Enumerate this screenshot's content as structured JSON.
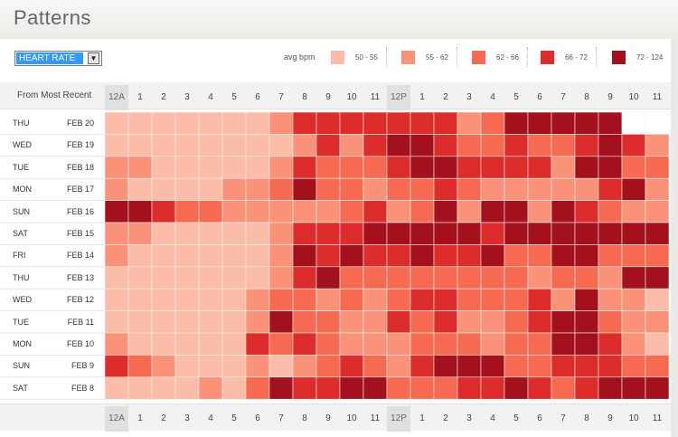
{
  "page": {
    "title": "Patterns"
  },
  "controls": {
    "metric_select": {
      "value": "HEART RATE"
    }
  },
  "legend": {
    "title": "avg bpm",
    "items": [
      {
        "label": "50 - 55",
        "color": "#fbbca8"
      },
      {
        "label": "55 - 62",
        "color": "#fa9279"
      },
      {
        "label": "62 - 66",
        "color": "#f66a52"
      },
      {
        "label": "66 - 72",
        "color": "#dd2c2c"
      },
      {
        "label": "72 - 124",
        "color": "#a3111c"
      }
    ]
  },
  "table": {
    "header_label": "From Most Recent"
  },
  "chart_data": {
    "type": "heatmap",
    "title": "Patterns",
    "metric": "HEART RATE",
    "value_unit": "avg bpm",
    "bins": [
      "50 - 55",
      "55 - 62",
      "62 - 66",
      "66 - 72",
      "72 - 124"
    ],
    "value_encoding": "bin index 0-4 (0 = 50-55 … 4 = 72-124); null = no data",
    "x_labels": [
      "12A",
      "1",
      "2",
      "3",
      "4",
      "5",
      "6",
      "7",
      "8",
      "9",
      "10",
      "11",
      "12P",
      "1",
      "2",
      "3",
      "4",
      "5",
      "6",
      "7",
      "8",
      "9",
      "10",
      "11"
    ],
    "rows": [
      {
        "day": "THU",
        "date": "FEB 20",
        "values": [
          0,
          0,
          0,
          0,
          0,
          0,
          0,
          1,
          3,
          3,
          3,
          3,
          3,
          3,
          3,
          1,
          2,
          4,
          4,
          4,
          4,
          4,
          null,
          null
        ]
      },
      {
        "day": "WED",
        "date": "FEB 19",
        "values": [
          0,
          0,
          0,
          0,
          0,
          0,
          0,
          0,
          1,
          3,
          1,
          3,
          4,
          4,
          3,
          2,
          2,
          3,
          2,
          2,
          3,
          4,
          3,
          1
        ]
      },
      {
        "day": "TUE",
        "date": "FEB 18",
        "values": [
          1,
          1,
          0,
          0,
          0,
          0,
          0,
          1,
          3,
          2,
          2,
          2,
          3,
          4,
          4,
          3,
          3,
          3,
          3,
          1,
          4,
          4,
          2,
          2
        ]
      },
      {
        "day": "MON",
        "date": "FEB 17",
        "values": [
          1,
          0,
          0,
          0,
          0,
          1,
          1,
          2,
          4,
          2,
          2,
          1,
          2,
          2,
          3,
          2,
          1,
          1,
          1,
          1,
          1,
          3,
          4,
          1
        ]
      },
      {
        "day": "SUN",
        "date": "FEB 16",
        "values": [
          4,
          4,
          3,
          2,
          2,
          1,
          1,
          1,
          1,
          1,
          2,
          3,
          1,
          2,
          4,
          1,
          4,
          4,
          1,
          4,
          3,
          2,
          1,
          1
        ]
      },
      {
        "day": "SAT",
        "date": "FEB 15",
        "values": [
          1,
          1,
          0,
          0,
          0,
          0,
          0,
          1,
          3,
          3,
          3,
          4,
          4,
          4,
          4,
          4,
          3,
          4,
          4,
          4,
          4,
          4,
          4,
          4
        ]
      },
      {
        "day": "FRI",
        "date": "FEB 14",
        "values": [
          1,
          0,
          0,
          0,
          0,
          0,
          0,
          1,
          4,
          3,
          4,
          3,
          3,
          4,
          3,
          3,
          4,
          2,
          2,
          4,
          4,
          2,
          2,
          2
        ]
      },
      {
        "day": "THU",
        "date": "FEB 13",
        "values": [
          0,
          0,
          0,
          0,
          0,
          0,
          0,
          1,
          3,
          4,
          2,
          2,
          2,
          2,
          2,
          2,
          2,
          2,
          1,
          2,
          2,
          1,
          4,
          4
        ]
      },
      {
        "day": "WED",
        "date": "FEB 12",
        "values": [
          0,
          0,
          0,
          0,
          0,
          0,
          1,
          2,
          2,
          1,
          2,
          1,
          2,
          3,
          3,
          2,
          2,
          2,
          3,
          1,
          4,
          1,
          1,
          0
        ]
      },
      {
        "day": "TUE",
        "date": "FEB 11",
        "values": [
          0,
          0,
          0,
          0,
          0,
          0,
          1,
          4,
          2,
          2,
          1,
          1,
          3,
          2,
          3,
          1,
          1,
          2,
          3,
          4,
          4,
          2,
          1,
          1
        ]
      },
      {
        "day": "MON",
        "date": "FEB 10",
        "values": [
          1,
          0,
          0,
          0,
          0,
          0,
          3,
          2,
          3,
          2,
          1,
          1,
          1,
          2,
          2,
          2,
          1,
          2,
          2,
          4,
          4,
          3,
          1,
          0
        ]
      },
      {
        "day": "SUN",
        "date": "FEB 9",
        "values": [
          3,
          2,
          1,
          0,
          0,
          0,
          1,
          0,
          1,
          2,
          3,
          2,
          1,
          3,
          4,
          4,
          4,
          2,
          2,
          3,
          3,
          3,
          2,
          2
        ]
      },
      {
        "day": "SAT",
        "date": "FEB 8",
        "values": [
          0,
          0,
          0,
          0,
          1,
          0,
          2,
          4,
          3,
          3,
          4,
          4,
          2,
          2,
          2,
          3,
          3,
          4,
          3,
          2,
          3,
          4,
          4,
          4
        ]
      }
    ]
  }
}
